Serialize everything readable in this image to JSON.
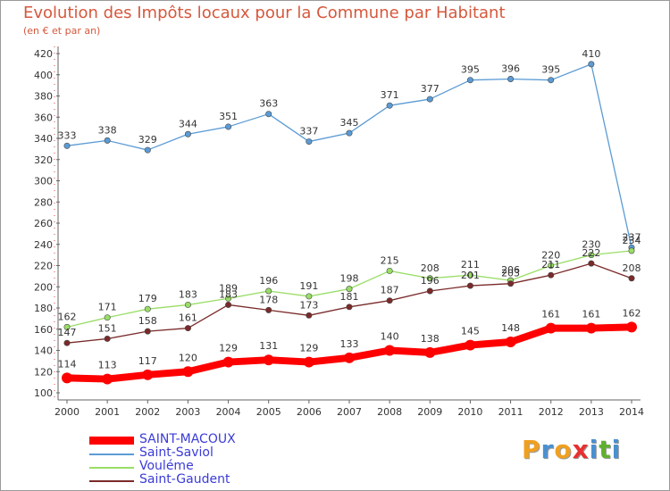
{
  "header": {
    "title": "Evolution des Impôts locaux pour la Commune par Habitant",
    "subtitle": "(en € et par an)"
  },
  "brand": {
    "letters": [
      "P",
      "r",
      "o",
      "x",
      "i",
      "t",
      "i"
    ],
    "colors": [
      "#f0a020",
      "#4a90d0",
      "#f0a020",
      "#e83030",
      "#4a90d0",
      "#60b030",
      "#4a90d0"
    ]
  },
  "chart_data": {
    "type": "line",
    "x": [
      "2000",
      "2001",
      "2002",
      "2003",
      "2004",
      "2005",
      "2006",
      "2007",
      "2008",
      "2009",
      "2010",
      "2011",
      "2012",
      "2013",
      "2014"
    ],
    "ylim": [
      100,
      420
    ],
    "yticks": [
      100,
      120,
      140,
      160,
      180,
      200,
      220,
      240,
      260,
      280,
      300,
      320,
      340,
      360,
      380,
      400,
      420
    ],
    "grid": false,
    "legend_position": "bottom-left",
    "series": [
      {
        "name": "Saint-Saviol",
        "color": "#5b9bd5",
        "weight": "thin",
        "values": [
          333,
          338,
          329,
          344,
          351,
          363,
          337,
          345,
          371,
          377,
          395,
          396,
          395,
          410,
          237
        ]
      },
      {
        "name": "Vouléme",
        "color": "#99dd66",
        "weight": "thin",
        "values": [
          162,
          171,
          179,
          183,
          189,
          196,
          191,
          198,
          215,
          208,
          211,
          206,
          220,
          230,
          234
        ]
      },
      {
        "name": "Saint-Gaudent",
        "color": "#7a2a2a",
        "weight": "thin",
        "values": [
          147,
          151,
          158,
          161,
          183,
          178,
          173,
          181,
          187,
          196,
          201,
          203,
          211,
          222,
          208
        ]
      },
      {
        "name": "SAINT-MACOUX",
        "color": "#ff0000",
        "weight": "thick",
        "values": [
          114,
          113,
          117,
          120,
          129,
          131,
          129,
          133,
          140,
          138,
          145,
          148,
          161,
          161,
          162
        ]
      }
    ],
    "legend": [
      "SAINT-MACOUX",
      "Saint-Saviol",
      "Vouléme",
      "Saint-Gaudent"
    ]
  }
}
